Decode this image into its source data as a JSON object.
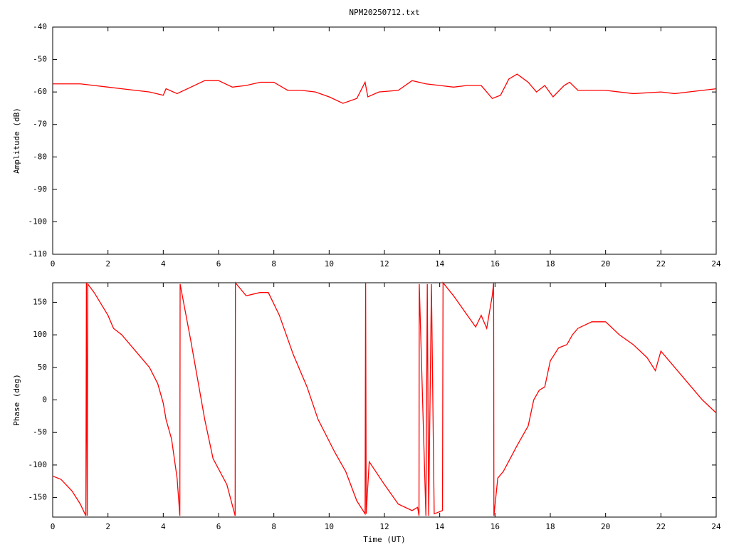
{
  "chart_data": [
    {
      "type": "line",
      "title": "NPM20250712.txt",
      "ylabel": "Amplitude (dB)",
      "color": "#ff0000",
      "grid": false,
      "xlim": [
        0,
        24
      ],
      "xticks": [
        0,
        2,
        4,
        6,
        8,
        10,
        12,
        14,
        16,
        18,
        20,
        22,
        24
      ],
      "ylim": [
        -110,
        -40
      ],
      "yticks": [
        -40,
        -50,
        -60,
        -70,
        -80,
        -90,
        -100,
        -110
      ],
      "x": [
        0,
        0.5,
        1,
        1.5,
        2,
        2.5,
        3,
        3.5,
        4,
        4.1,
        4.5,
        5,
        5.5,
        6,
        6.5,
        7,
        7.5,
        8,
        8.5,
        9,
        9.5,
        10,
        10.5,
        11,
        11.3,
        11.4,
        11.8,
        12.5,
        13,
        13.5,
        14,
        14.5,
        15,
        15.5,
        15.9,
        16.2,
        16.5,
        16.8,
        17.2,
        17.5,
        17.8,
        18.1,
        18.5,
        18.7,
        19,
        20,
        21,
        22,
        22.5,
        23,
        24
      ],
      "values": [
        -57.5,
        -57.5,
        -57.5,
        -58,
        -58.5,
        -59,
        -59.5,
        -60,
        -61,
        -59,
        -60.5,
        -58.5,
        -56.5,
        -56.5,
        -58.5,
        -58,
        -57,
        -57,
        -59.5,
        -59.5,
        -60,
        -61.5,
        -63.5,
        -62,
        -57,
        -61.5,
        -60,
        -59.5,
        -56.5,
        -57.5,
        -58,
        -58.5,
        -58,
        -58,
        -62,
        -61,
        -56,
        -54.5,
        -57,
        -60,
        -58,
        -61.5,
        -58,
        -57,
        -59.5,
        -59.5,
        -60.5,
        -60,
        -60.5,
        -60,
        -59
      ]
    },
    {
      "type": "line",
      "xlabel": "Time (UT)",
      "ylabel": "Phase (deg)",
      "color": "#ff0000",
      "grid": false,
      "xlim": [
        0,
        24
      ],
      "xticks": [
        0,
        2,
        4,
        6,
        8,
        10,
        12,
        14,
        16,
        18,
        20,
        22,
        24
      ],
      "ylim": [
        -180,
        180
      ],
      "yticks": [
        150,
        100,
        50,
        0,
        -50,
        -100,
        -150
      ],
      "x": [
        0,
        0.3,
        0.7,
        1.0,
        1.2,
        1.22,
        1.25,
        1.27,
        1.5,
        2,
        2.2,
        2.5,
        3,
        3.5,
        3.8,
        4.0,
        4.1,
        4.3,
        4.5,
        4.6,
        4.61,
        5,
        5.5,
        5.8,
        6.3,
        6.6,
        6.61,
        7,
        7.5,
        7.8,
        8.2,
        8.7,
        9.2,
        9.6,
        10.2,
        10.6,
        11,
        11.3,
        11.32,
        11.34,
        11.45,
        12,
        12.5,
        13,
        13.2,
        13.25,
        13.26,
        13.5,
        13.55,
        13.6,
        13.7,
        13.8,
        14.1,
        14.12,
        14.5,
        15,
        15.3,
        15.5,
        15.7,
        15.9,
        15.95,
        15.96,
        16.1,
        16.3,
        16.8,
        17.2,
        17.4,
        17.6,
        17.8,
        18,
        18.3,
        18.6,
        18.8,
        19,
        19.5,
        20,
        20.5,
        21,
        21.5,
        21.8,
        22,
        22.3,
        23,
        23.5,
        24
      ],
      "values": [
        -117,
        -122,
        -140,
        -160,
        -178,
        180,
        -178,
        178,
        165,
        130,
        110,
        100,
        75,
        50,
        25,
        -5,
        -30,
        -60,
        -120,
        -178,
        178,
        90,
        -30,
        -90,
        -130,
        -178,
        180,
        160,
        165,
        165,
        130,
        70,
        20,
        -30,
        -80,
        -110,
        -155,
        -175,
        180,
        -175,
        -95,
        -130,
        -160,
        -170,
        -165,
        -178,
        178,
        -178,
        178,
        -178,
        178,
        -175,
        -170,
        180,
        160,
        130,
        112,
        130,
        110,
        160,
        180,
        -178,
        -120,
        -110,
        -70,
        -40,
        0,
        15,
        20,
        60,
        80,
        85,
        100,
        110,
        120,
        120,
        100,
        85,
        65,
        45,
        75,
        60,
        25,
        0,
        -20
      ]
    }
  ]
}
